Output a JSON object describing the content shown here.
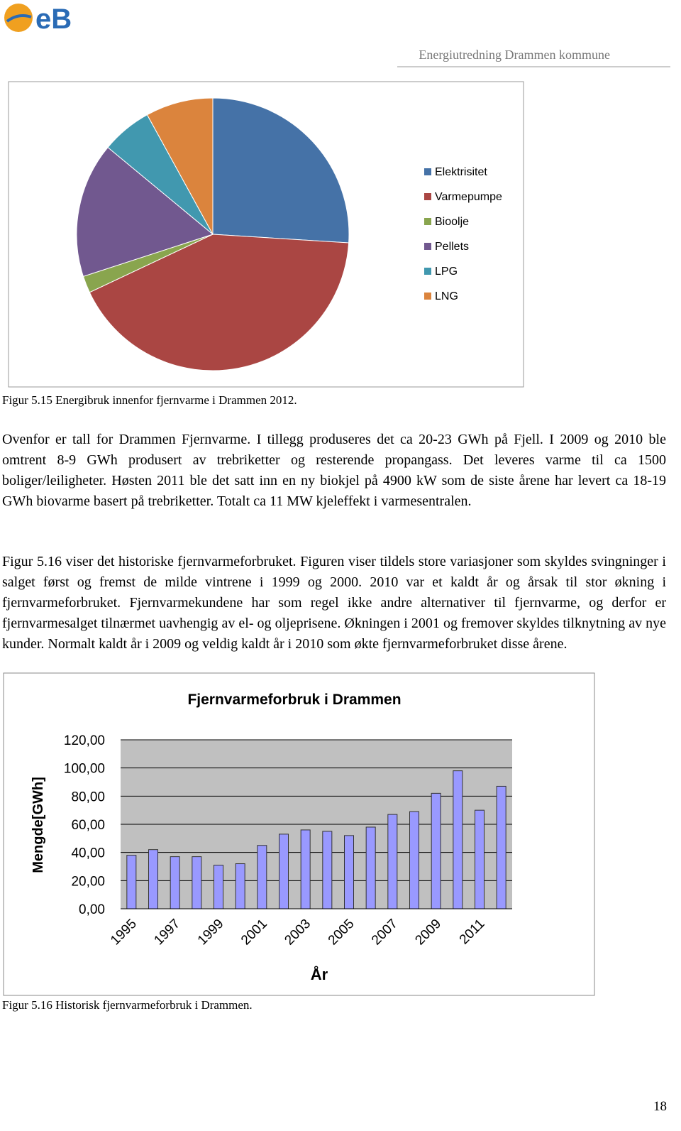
{
  "header": {
    "logo": "eB",
    "title": "Energiutredning Drammen kommune"
  },
  "chart_data": [
    {
      "type": "pie",
      "categories": [
        "Elektrisitet",
        "Varmepumpe",
        "Bioolje",
        "Pellets",
        "LPG",
        "LNG"
      ],
      "values": [
        26,
        42,
        2,
        16,
        6,
        8
      ],
      "colors": [
        "#4572a7",
        "#aa4643",
        "#89a54e",
        "#71588f",
        "#4198af",
        "#db843d"
      ],
      "legend": "right"
    },
    {
      "type": "bar",
      "title": "Fjernvarmeforbruk i Drammen",
      "x_label": "År",
      "y_label": "Mengde[GWh]",
      "categories": [
        "1995",
        null,
        "1997",
        null,
        "1999",
        null,
        "2001",
        null,
        "2003",
        null,
        "2005",
        null,
        "2007",
        null,
        "2009",
        null,
        "2011",
        null
      ],
      "values": [
        38,
        42,
        37,
        37,
        31,
        32,
        45,
        53,
        56,
        55,
        52,
        58,
        67,
        69,
        82,
        98,
        70,
        87
      ],
      "color": "#9999ff",
      "ylim": [
        0,
        120
      ],
      "yticks": [
        {
          "value": 0,
          "label": "0,00"
        },
        {
          "value": 20,
          "label": "20,00"
        },
        {
          "value": 40,
          "label": "40,00"
        },
        {
          "value": 60,
          "label": "60,00"
        },
        {
          "value": 80,
          "label": "80,00"
        },
        {
          "value": 100,
          "label": "100,00"
        },
        {
          "value": 120,
          "label": "120,00"
        }
      ],
      "grid": true
    }
  ],
  "captions": [
    "Figur 5.15 Energibruk innenfor fjernvarme i Drammen 2012.",
    "Figur 5.16 Historisk fjernvarmeforbruk i Drammen."
  ],
  "paragraphs": [
    "Ovenfor er tall for Drammen Fjernvarme. I tillegg produseres det ca 20-23 GWh på Fjell. I 2009 og 2010 ble omtrent 8-9 GWh produsert av trebriketter og resterende propangass. Det leveres varme til ca 1500 boliger/leiligheter. Høsten 2011 ble det satt inn en ny biokjel på 4900 kW som de siste årene har levert ca 18-19 GWh biovarme basert på trebriketter. Totalt ca 11 MW kjeleffekt i varmesentralen.",
    "Figur 5.16 viser det historiske fjernvarmeforbruket. Figuren viser tildels store variasjoner som skyldes svingninger i salget først og fremst de milde vintrene i 1999 og 2000. 2010 var et kaldt år og årsak til stor økning i fjernvarmeforbruket. Fjernvarmekundene har som regel ikke andre alternativer til fjernvarme, og derfor er fjernvarmesalget tilnærmet uavhengig av el- og oljeprisene. Økningen i 2001 og fremover skyldes tilknytning av nye kunder. Normalt kaldt år i 2009 og veldig kaldt år i 2010 som økte fjernvarmeforbruket disse årene."
  ],
  "page_number": "18"
}
